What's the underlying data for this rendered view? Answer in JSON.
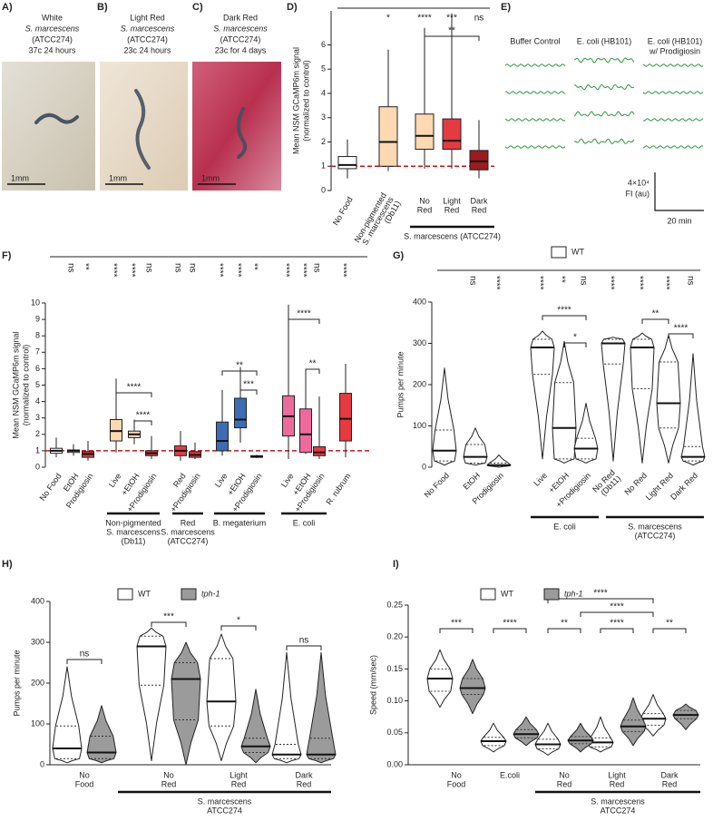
{
  "figure": {
    "panel_labels": [
      "A)",
      "B)",
      "C)",
      "D)",
      "E)",
      "F)",
      "G)",
      "H)",
      "I)"
    ],
    "photos": [
      {
        "lines": [
          "White",
          "S. marcescens",
          "(ATCC274)",
          "37c 24 hours"
        ],
        "scale_bar": "1mm"
      },
      {
        "lines": [
          "Light Red",
          "S. marcescens",
          "(ATCC274)",
          "23c 24 hours"
        ],
        "scale_bar": "1mm"
      },
      {
        "lines": [
          "Dark Red",
          "S. marcescens",
          "(ATCC274)",
          "23c for 4 days"
        ],
        "scale_bar": "1mm"
      }
    ],
    "traces": {
      "headers": [
        [
          "Buffer Control"
        ],
        [
          "E. coli (HB101)"
        ],
        [
          "E. coli (HB101)",
          "w/ Prodigiosin"
        ]
      ],
      "scale_y": "4×10⁴",
      "scale_y_unit": "FI (au)",
      "scale_x": "20 min"
    }
  },
  "chart_data": [
    {
      "type": "box",
      "ylabel": [
        "Mean NSM GCaMP6m signal",
        "(normalized to control)"
      ],
      "ylim": [
        0,
        7.4
      ],
      "yticks": [
        0,
        1,
        2,
        3,
        4,
        5,
        6
      ],
      "categories": [
        "No Food",
        [
          "Non-pigmented",
          "S. marcescens",
          "(Db11)"
        ],
        [
          "No",
          "Red"
        ],
        [
          "Light",
          "Red"
        ],
        [
          "Dark",
          "Red"
        ]
      ],
      "series": [
        {
          "colors": [
            "#ffffff",
            "#fcd9b1",
            "#fcd9b1",
            "#e53a3f",
            "#9c1b1f"
          ],
          "values": [
            {
              "min": 0.5,
              "q1": 0.9,
              "median": 1.05,
              "q3": 1.4,
              "max": 2.1
            },
            {
              "min": 0.8,
              "q1": 1.0,
              "median": 2.0,
              "q3": 3.45,
              "max": 5.8
            },
            {
              "min": 0.9,
              "q1": 1.7,
              "median": 2.25,
              "q3": 3.15,
              "max": 6.7
            },
            {
              "min": 0.9,
              "q1": 1.7,
              "median": 2.05,
              "q3": 2.95,
              "max": 7.3
            },
            {
              "min": 0.5,
              "q1": 0.85,
              "median": 1.2,
              "q3": 1.65,
              "max": 2.9
            }
          ]
        }
      ],
      "reference_line": {
        "value": 1,
        "color": "#c0161c"
      },
      "significance": [
        null,
        "*",
        "****",
        "***",
        "ns"
      ],
      "brackets": [
        "**"
      ],
      "groups": [
        [
          "S. marcescens (ATCC274)"
        ]
      ]
    },
    {
      "type": "box",
      "ylabel": [
        "Mean NSM GCaMP6m signal",
        "(normalized to control)"
      ],
      "ylim": [
        0,
        10
      ],
      "yticks": [
        0,
        1,
        2,
        3,
        4,
        5,
        6,
        7,
        8,
        9,
        10
      ],
      "categories": [
        "No Food",
        "EtOH",
        "Prodigiosin",
        "Live",
        "+EtOH",
        "+Prodigiosin",
        "Red",
        "+Prodigiosin",
        "Live",
        "+EtOH",
        "+Prodigiosin",
        "Live",
        "+EtOH",
        "+Prodigiosin",
        "R. rubrum"
      ],
      "series": [
        {
          "colors": [
            "#ffffff",
            "#ffffff",
            "#e53a3f",
            "#fcd9b1",
            "#fcd9b1",
            "#e53a3f",
            "#e53a3f",
            "#e53a3f",
            "#3c6db4",
            "#3c6db4",
            "#e53a3f",
            "#ee6a9c",
            "#ee6a9c",
            "#e53a3f",
            "#e53a3f"
          ],
          "values": [
            {
              "min": 0.6,
              "q1": 0.85,
              "median": 1.0,
              "q3": 1.15,
              "max": 1.8
            },
            {
              "min": 0.7,
              "q1": 0.9,
              "median": 1.0,
              "q3": 1.05,
              "max": 1.4
            },
            {
              "min": 0.4,
              "q1": 0.6,
              "median": 0.8,
              "q3": 0.95,
              "max": 1.6
            },
            {
              "min": 0.9,
              "q1": 1.6,
              "median": 2.2,
              "q3": 2.9,
              "max": 5.4
            },
            {
              "min": 1.4,
              "q1": 1.8,
              "median": 2.0,
              "q3": 2.2,
              "max": 2.9
            },
            {
              "min": 0.5,
              "q1": 0.7,
              "median": 0.85,
              "q3": 1.0,
              "max": 1.9
            },
            {
              "min": 0.4,
              "q1": 0.7,
              "median": 1.0,
              "q3": 1.3,
              "max": 2.2
            },
            {
              "min": 0.5,
              "q1": 0.6,
              "median": 0.75,
              "q3": 0.95,
              "max": 1.5
            },
            {
              "min": 0.7,
              "q1": 1.0,
              "median": 1.6,
              "q3": 2.75,
              "max": 4.7
            },
            {
              "min": 1.5,
              "q1": 2.4,
              "median": 2.9,
              "q3": 4.2,
              "max": 6.1
            },
            {
              "min": 0.55,
              "q1": 0.6,
              "median": 0.65,
              "q3": 0.7,
              "max": 0.75
            },
            {
              "min": 0.5,
              "q1": 1.9,
              "median": 3.1,
              "q3": 4.35,
              "max": 9.9
            },
            {
              "min": 0.8,
              "q1": 0.9,
              "median": 2.0,
              "q3": 3.55,
              "max": 5.9
            },
            {
              "min": 0.5,
              "q1": 0.7,
              "median": 0.9,
              "q3": 1.25,
              "max": 4.3
            },
            {
              "min": 0.6,
              "q1": 1.6,
              "median": 2.95,
              "q3": 4.5,
              "max": 6.3
            }
          ]
        }
      ],
      "reference_line": {
        "value": 1,
        "color": "#c0161c"
      },
      "significance": [
        null,
        "ns",
        "**",
        "****",
        "****",
        "ns",
        "ns",
        "ns",
        "****",
        "****",
        "**",
        "****",
        "****",
        "ns",
        "****"
      ],
      "brackets": [
        "****",
        "****",
        "**",
        "***",
        "****",
        "**"
      ],
      "groups": [
        [
          "Non-pigmented",
          "S. marcescens",
          "(Db11)"
        ],
        [
          "Red",
          "S. marcescens",
          "(ATCC274)"
        ],
        [
          "B. megaterium"
        ],
        [
          "E. coli"
        ]
      ]
    },
    {
      "type": "violin",
      "ylabel": [
        "Pumps per minute"
      ],
      "ylim": [
        0,
        400
      ],
      "yticks": [
        0,
        100,
        200,
        300,
        400
      ],
      "categories": [
        "No Food",
        "EtOH",
        "Prodigiosin",
        "Live",
        "+EtOH",
        "+Prodigiosin",
        [
          "No Red",
          "(Db11)"
        ],
        "No Red",
        "Light Red",
        "Dark Red"
      ],
      "series": [
        {
          "name": "WT",
          "color": "#ffffff",
          "values": [
            {
              "min": 5,
              "q1": 15,
              "median": 40,
              "q3": 90,
              "max": 240
            },
            {
              "min": 5,
              "q1": 10,
              "median": 25,
              "q3": 55,
              "max": 95
            },
            {
              "min": 0,
              "q1": 3,
              "median": 5,
              "q3": 10,
              "max": 30
            },
            {
              "min": 20,
              "q1": 225,
              "median": 290,
              "q3": 310,
              "max": 330
            },
            {
              "min": 10,
              "q1": 20,
              "median": 95,
              "q3": 205,
              "max": 305
            },
            {
              "min": 10,
              "q1": 20,
              "median": 45,
              "q3": 70,
              "max": 155
            },
            {
              "min": 15,
              "q1": 250,
              "median": 300,
              "q3": 310,
              "max": 315
            },
            {
              "min": 10,
              "q1": 190,
              "median": 290,
              "q3": 310,
              "max": 325
            },
            {
              "min": 10,
              "q1": 95,
              "median": 155,
              "q3": 255,
              "max": 320
            },
            {
              "min": 5,
              "q1": 15,
              "median": 25,
              "q3": 50,
              "max": 275
            }
          ]
        }
      ],
      "significance": [
        null,
        "ns",
        "****",
        "****",
        "**",
        "ns",
        "****",
        "****",
        "****",
        "ns"
      ],
      "brackets": [
        "****",
        "*",
        "**",
        "****"
      ],
      "groups": [
        [
          "E. coli"
        ],
        [
          "S. marcescens",
          "(ATCC274)"
        ]
      ]
    },
    {
      "type": "violin",
      "ylabel": [
        "Pumps per minute"
      ],
      "ylim": [
        0,
        400
      ],
      "yticks": [
        0,
        100,
        200,
        300,
        400
      ],
      "categories": [
        [
          "No",
          "Food"
        ],
        [
          "No",
          "Red"
        ],
        [
          "Light",
          "Red"
        ],
        [
          "Dark",
          "Red"
        ]
      ],
      "series": [
        {
          "name": "WT",
          "color": "#ffffff",
          "values": [
            {
              "min": 5,
              "q1": 15,
              "median": 40,
              "q3": 95,
              "max": 240
            },
            {
              "min": 10,
              "q1": 195,
              "median": 290,
              "q3": 315,
              "max": 335
            },
            {
              "min": 10,
              "q1": 95,
              "median": 155,
              "q3": 260,
              "max": 320
            },
            {
              "min": 5,
              "q1": 15,
              "median": 25,
              "q3": 50,
              "max": 275
            }
          ]
        },
        {
          "name": "tph-1",
          "color": "#9b9b9b",
          "values": [
            {
              "min": 5,
              "q1": 15,
              "median": 30,
              "q3": 70,
              "max": 145
            },
            {
              "min": 0,
              "q1": 110,
              "median": 210,
              "q3": 250,
              "max": 300
            },
            {
              "min": 5,
              "q1": 30,
              "median": 45,
              "q3": 65,
              "max": 185
            },
            {
              "min": 5,
              "q1": 15,
              "median": 25,
              "q3": 65,
              "max": 275
            }
          ]
        }
      ],
      "significance": [
        "ns",
        "***",
        "*",
        "ns"
      ],
      "groups": [
        [
          "S. marcescens",
          "ATCC274"
        ]
      ]
    },
    {
      "type": "violin",
      "ylabel": [
        "Speed (mm/sec)"
      ],
      "ylim": [
        0,
        0.25
      ],
      "yticks": [
        {
          "value": 0,
          "label": "0.00"
        },
        {
          "value": 0.05,
          "label": "0.05"
        },
        {
          "value": 0.1,
          "label": "0.10"
        },
        {
          "value": 0.15,
          "label": "0.15"
        },
        {
          "value": 0.2,
          "label": "0.20"
        },
        {
          "value": 0.25,
          "label": "0.25"
        }
      ],
      "categories": [
        [
          "No",
          "Food"
        ],
        "E.coli",
        [
          "No",
          "Red"
        ],
        [
          "Light",
          "Red"
        ],
        [
          "Dark",
          "Red"
        ]
      ],
      "series": [
        {
          "name": "WT",
          "color": "#ffffff",
          "values": [
            {
              "min": 0.09,
              "q1": 0.115,
              "median": 0.135,
              "q3": 0.15,
              "max": 0.18
            },
            {
              "min": 0.02,
              "q1": 0.03,
              "median": 0.037,
              "q3": 0.043,
              "max": 0.065
            },
            {
              "min": 0.015,
              "q1": 0.025,
              "median": 0.032,
              "q3": 0.04,
              "max": 0.065
            },
            {
              "min": 0.02,
              "q1": 0.028,
              "median": 0.035,
              "q3": 0.042,
              "max": 0.075
            },
            {
              "min": 0.045,
              "q1": 0.062,
              "median": 0.072,
              "q3": 0.08,
              "max": 0.11
            }
          ]
        },
        {
          "name": "tph-1",
          "color": "#9b9b9b",
          "values": [
            {
              "min": 0.08,
              "q1": 0.11,
              "median": 0.12,
              "q3": 0.135,
              "max": 0.165
            },
            {
              "min": 0.03,
              "q1": 0.042,
              "median": 0.048,
              "q3": 0.055,
              "max": 0.075
            },
            {
              "min": 0.02,
              "q1": 0.033,
              "median": 0.038,
              "q3": 0.044,
              "max": 0.065
            },
            {
              "min": 0.03,
              "q1": 0.052,
              "median": 0.06,
              "q3": 0.07,
              "max": 0.105
            },
            {
              "min": 0.055,
              "q1": 0.072,
              "median": 0.078,
              "q3": 0.085,
              "max": 0.095
            }
          ]
        }
      ],
      "significance": [
        "***",
        "****",
        "**",
        "****",
        "**"
      ],
      "brackets": [
        "****",
        "****"
      ],
      "groups": [
        [
          "S. marcescens",
          "ATCC274"
        ]
      ]
    }
  ]
}
